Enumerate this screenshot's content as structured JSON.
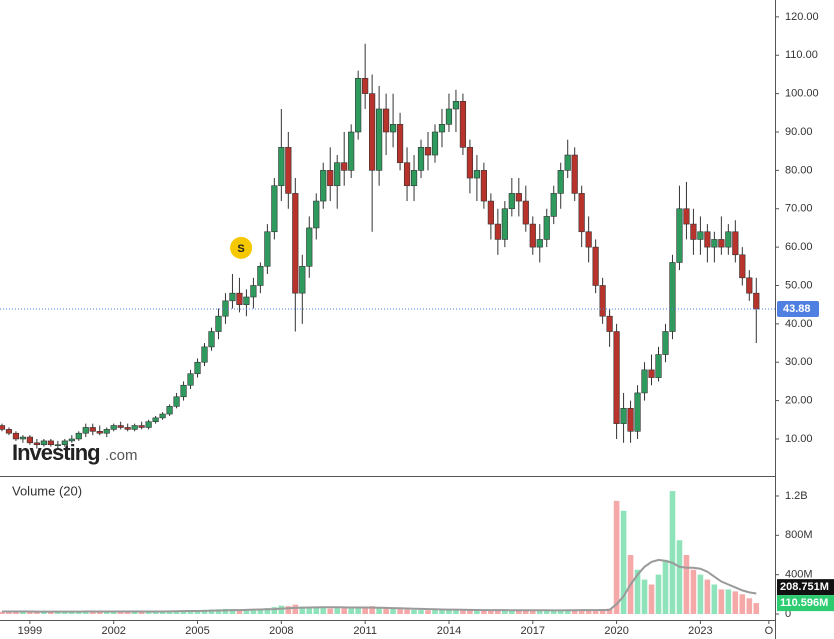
{
  "chart_data": {
    "type": "candlestick",
    "x": [
      1998,
      1998.25,
      1998.5,
      1998.75,
      1999,
      1999.25,
      1999.5,
      1999.75,
      2000,
      2000.25,
      2000.5,
      2000.75,
      2001,
      2001.25,
      2001.5,
      2001.75,
      2002,
      2002.25,
      2002.5,
      2002.75,
      2003,
      2003.25,
      2003.5,
      2003.75,
      2004,
      2004.25,
      2004.5,
      2004.75,
      2005,
      2005.25,
      2005.5,
      2005.75,
      2006,
      2006.25,
      2006.5,
      2006.75,
      2007,
      2007.25,
      2007.5,
      2007.75,
      2008,
      2008.25,
      2008.5,
      2008.75,
      2009,
      2009.25,
      2009.5,
      2009.75,
      2010,
      2010.25,
      2010.5,
      2010.75,
      2011,
      2011.25,
      2011.5,
      2011.75,
      2012,
      2012.25,
      2012.5,
      2012.75,
      2013,
      2013.25,
      2013.5,
      2013.75,
      2014,
      2014.25,
      2014.5,
      2014.75,
      2015,
      2015.25,
      2015.5,
      2015.75,
      2016,
      2016.25,
      2016.5,
      2016.75,
      2017,
      2017.25,
      2017.5,
      2017.75,
      2018,
      2018.25,
      2018.5,
      2018.75,
      2019,
      2019.25,
      2019.5,
      2019.75,
      2020,
      2020.25,
      2020.5,
      2020.75,
      2021,
      2021.25,
      2021.5,
      2021.75,
      2022,
      2022.25,
      2022.5,
      2022.75,
      2023,
      2023.25,
      2023.5,
      2023.75,
      2024,
      2024.25,
      2024.5,
      2024.75,
      2025
    ],
    "ohlc": [
      [
        13.5,
        14,
        12,
        12.5
      ],
      [
        12.5,
        13,
        11,
        11.5
      ],
      [
        11.5,
        12,
        9.5,
        10
      ],
      [
        10,
        11,
        9,
        10.5
      ],
      [
        10.5,
        11,
        8.5,
        9
      ],
      [
        9,
        10,
        7.5,
        8.5
      ],
      [
        8.5,
        10,
        8,
        9.5
      ],
      [
        9.5,
        10,
        8,
        8.5
      ],
      [
        8.5,
        9.5,
        7.5,
        8.5
      ],
      [
        8.5,
        10,
        8,
        9.5
      ],
      [
        9.5,
        11,
        9,
        10
      ],
      [
        10,
        12,
        9.5,
        11.5
      ],
      [
        11.5,
        14,
        10.5,
        13
      ],
      [
        13,
        14,
        11,
        12
      ],
      [
        12,
        13.5,
        11,
        11.5
      ],
      [
        11.5,
        13,
        10.5,
        12.5
      ],
      [
        12.5,
        14,
        12,
        13.5
      ],
      [
        13.5,
        14.5,
        12.5,
        13
      ],
      [
        13,
        14,
        12,
        12.5
      ],
      [
        12.5,
        14,
        12,
        13.5
      ],
      [
        13.5,
        14.5,
        12.5,
        13
      ],
      [
        13,
        15,
        12.5,
        14.5
      ],
      [
        14.5,
        16,
        14,
        15.5
      ],
      [
        15.5,
        17,
        15,
        16.5
      ],
      [
        16.5,
        19,
        16,
        18.5
      ],
      [
        18.5,
        22,
        18,
        21
      ],
      [
        21,
        25,
        20,
        24
      ],
      [
        24,
        28,
        23,
        27
      ],
      [
        27,
        31,
        26,
        30
      ],
      [
        30,
        35,
        29,
        34
      ],
      [
        34,
        39,
        33,
        38
      ],
      [
        38,
        44,
        36,
        42
      ],
      [
        42,
        48,
        40,
        46
      ],
      [
        46,
        53,
        44,
        48
      ],
      [
        48,
        52,
        43,
        45
      ],
      [
        45,
        49,
        42,
        47
      ],
      [
        47,
        52,
        44,
        50
      ],
      [
        50,
        56,
        48,
        55
      ],
      [
        55,
        66,
        53,
        64
      ],
      [
        64,
        78,
        62,
        76
      ],
      [
        76,
        96,
        72,
        86
      ],
      [
        86,
        90,
        70,
        74
      ],
      [
        74,
        78,
        38,
        48
      ],
      [
        48,
        58,
        40,
        55
      ],
      [
        55,
        68,
        52,
        65
      ],
      [
        65,
        74,
        62,
        72
      ],
      [
        72,
        82,
        70,
        80
      ],
      [
        80,
        86,
        72,
        76
      ],
      [
        76,
        84,
        70,
        82
      ],
      [
        82,
        90,
        76,
        80
      ],
      [
        80,
        92,
        78,
        90
      ],
      [
        90,
        106,
        88,
        104
      ],
      [
        104,
        113,
        96,
        100
      ],
      [
        100,
        105,
        64,
        80
      ],
      [
        80,
        102,
        76,
        96
      ],
      [
        96,
        100,
        84,
        90
      ],
      [
        90,
        100,
        86,
        92
      ],
      [
        92,
        95,
        80,
        82
      ],
      [
        82,
        86,
        72,
        76
      ],
      [
        76,
        84,
        72,
        80
      ],
      [
        80,
        88,
        78,
        86
      ],
      [
        86,
        90,
        80,
        84
      ],
      [
        84,
        92,
        82,
        90
      ],
      [
        90,
        96,
        86,
        92
      ],
      [
        92,
        100,
        90,
        96
      ],
      [
        96,
        101,
        90,
        98
      ],
      [
        98,
        100,
        84,
        86
      ],
      [
        86,
        88,
        74,
        78
      ],
      [
        78,
        84,
        72,
        80
      ],
      [
        80,
        82,
        70,
        72
      ],
      [
        72,
        74,
        62,
        66
      ],
      [
        66,
        70,
        58,
        62
      ],
      [
        62,
        72,
        60,
        70
      ],
      [
        70,
        78,
        68,
        74
      ],
      [
        74,
        78,
        68,
        72
      ],
      [
        72,
        76,
        64,
        66
      ],
      [
        66,
        68,
        58,
        60
      ],
      [
        60,
        66,
        56,
        62
      ],
      [
        62,
        70,
        60,
        68
      ],
      [
        68,
        76,
        66,
        74
      ],
      [
        74,
        82,
        70,
        80
      ],
      [
        80,
        88,
        78,
        84
      ],
      [
        84,
        86,
        72,
        74
      ],
      [
        74,
        76,
        60,
        64
      ],
      [
        64,
        68,
        56,
        60
      ],
      [
        60,
        62,
        48,
        50
      ],
      [
        50,
        52,
        40,
        42
      ],
      [
        42,
        44,
        34,
        38
      ],
      [
        38,
        40,
        10,
        14
      ],
      [
        14,
        22,
        9,
        18
      ],
      [
        18,
        20,
        9,
        12
      ],
      [
        12,
        24,
        10,
        22
      ],
      [
        22,
        30,
        20,
        28
      ],
      [
        28,
        32,
        24,
        26
      ],
      [
        26,
        34,
        25,
        32
      ],
      [
        32,
        40,
        30,
        38
      ],
      [
        38,
        58,
        36,
        56
      ],
      [
        56,
        76,
        54,
        70
      ],
      [
        70,
        77,
        62,
        66
      ],
      [
        66,
        70,
        58,
        62
      ],
      [
        62,
        68,
        58,
        64
      ],
      [
        64,
        66,
        56,
        60
      ],
      [
        60,
        64,
        56,
        62
      ],
      [
        62,
        68,
        58,
        60
      ],
      [
        60,
        66,
        58,
        64
      ],
      [
        64,
        67,
        56,
        58
      ],
      [
        58,
        60,
        50,
        52
      ],
      [
        52,
        54,
        46,
        48
      ],
      [
        48,
        52,
        35,
        43.88
      ]
    ],
    "up_color": "#2f9a5e",
    "down_color": "#b8332b",
    "last_price_color": "#4f7fe0",
    "xlim": [
      1997.93,
      2025.67
    ],
    "xticks": [
      1999,
      2002,
      2005,
      2008,
      2011,
      2014,
      2017,
      2020,
      2023,
      {
        "value": 2025.45,
        "label": "O"
      }
    ],
    "ylim": [
      0.35,
      124.4
    ],
    "yticks": [
      {
        "value": 10,
        "label": "10.00"
      },
      {
        "value": 20,
        "label": "20.00"
      },
      {
        "value": 30,
        "label": "30.00"
      },
      {
        "value": 40,
        "label": "40.00"
      },
      {
        "value": 50,
        "label": "50.00"
      },
      {
        "value": 60,
        "label": "60.00"
      },
      {
        "value": 70,
        "label": "70.00"
      },
      {
        "value": 80,
        "label": "80.00"
      },
      {
        "value": 90,
        "label": "90.00"
      },
      {
        "value": 100,
        "label": "100.00"
      },
      {
        "value": 110,
        "label": "110.00"
      },
      {
        "value": 120,
        "label": "120.00"
      }
    ],
    "annotations": [
      {
        "label": "S",
        "x": 2006.56,
        "y": 59.8
      }
    ],
    "watermark": {
      "brand": "Investing",
      "suffix": ".com"
    },
    "volume": {
      "title": "Volume (20)",
      "values": [
        22,
        25,
        28,
        24,
        26,
        22,
        20,
        24,
        28,
        25,
        22,
        26,
        30,
        27,
        24,
        22,
        25,
        28,
        24,
        26,
        24,
        27,
        30,
        28,
        32,
        35,
        38,
        36,
        40,
        42,
        45,
        48,
        52,
        50,
        46,
        48,
        50,
        55,
        60,
        70,
        85,
        80,
        95,
        75,
        70,
        65,
        60,
        55,
        60,
        58,
        62,
        65,
        75,
        80,
        70,
        60,
        55,
        50,
        45,
        42,
        40,
        38,
        40,
        42,
        45,
        48,
        44,
        40,
        42,
        38,
        36,
        35,
        38,
        40,
        36,
        34,
        32,
        35,
        38,
        34,
        40,
        45,
        42,
        38,
        40,
        45,
        50,
        55,
        1150,
        1050,
        600,
        450,
        350,
        300,
        400,
        550,
        1250,
        750,
        600,
        450,
        400,
        350,
        300,
        250,
        250,
        230,
        200,
        160,
        110.596
      ],
      "ma": [
        25,
        25,
        25,
        25,
        25,
        24,
        24,
        24,
        24,
        24,
        24,
        24,
        25,
        25,
        25,
        25,
        25,
        25,
        25,
        25,
        25,
        25,
        26,
        26,
        27,
        28,
        29,
        30,
        31,
        32,
        34,
        35,
        37,
        39,
        40,
        42,
        44,
        46,
        48,
        50,
        55,
        58,
        62,
        65,
        66,
        67,
        68,
        68,
        68,
        67,
        66,
        66,
        66,
        65,
        64,
        62,
        60,
        58,
        56,
        54,
        52,
        50,
        48,
        46,
        45,
        44,
        43,
        42,
        41,
        40,
        40,
        39,
        39,
        38,
        38,
        38,
        38,
        38,
        38,
        37,
        37,
        38,
        38,
        39,
        39,
        40,
        41,
        42,
        100,
        180,
        300,
        400,
        480,
        530,
        550,
        540,
        520,
        480,
        470,
        470,
        460,
        430,
        380,
        330,
        300,
        270,
        240,
        220,
        208.751
      ],
      "ma_color": "#9a9a9a",
      "up_color": "#8fe3bb",
      "down_color": "#f5a8a8",
      "ylim": [
        -61,
        1393
      ],
      "yticks": [
        {
          "value": 0,
          "label": "0"
        },
        {
          "value": 400,
          "label": "400M"
        },
        {
          "value": 800,
          "label": "800M"
        },
        {
          "value": 1200,
          "label": "1.2B"
        }
      ],
      "last_labels": {
        "ma": "208.751M",
        "volume": "110.596M"
      }
    }
  }
}
